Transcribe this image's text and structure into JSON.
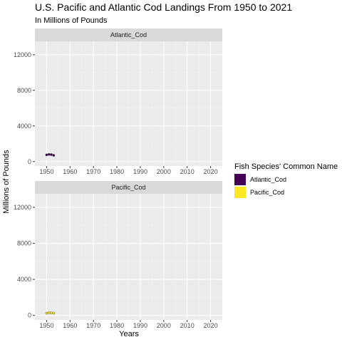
{
  "chart_data": {
    "type": "scatter",
    "title": "U.S. Pacific and Atlantic Cod Landings From 1950 to 2021",
    "subtitle": "In Millions of Pounds",
    "xlabel": "Years",
    "ylabel": "Millions of Pounds",
    "xlim": [
      1945,
      2025
    ],
    "ylim": [
      -500,
      13500
    ],
    "xticks": [
      1950,
      1960,
      1970,
      1980,
      1990,
      2000,
      2010,
      2020
    ],
    "yticks": [
      0,
      4000,
      8000,
      12000
    ],
    "grid": true,
    "facets": [
      "Atlantic_Cod",
      "Pacific_Cod"
    ],
    "legend": {
      "title": "Fish Species' Common Name",
      "position": "right",
      "entries": [
        {
          "label": "Atlantic_Cod",
          "color": "#440154"
        },
        {
          "label": "Pacific_Cod",
          "color": "#fde725"
        }
      ]
    },
    "series": [
      {
        "name": "Atlantic_Cod",
        "color": "#440154",
        "x": [
          1950,
          1951,
          1952,
          1953
        ],
        "y": [
          750,
          800,
          780,
          700
        ]
      },
      {
        "name": "Pacific_Cod",
        "color": "#fde725",
        "x": [
          1950,
          1951,
          1952,
          1953
        ],
        "y": [
          250,
          300,
          280,
          250
        ]
      }
    ]
  }
}
